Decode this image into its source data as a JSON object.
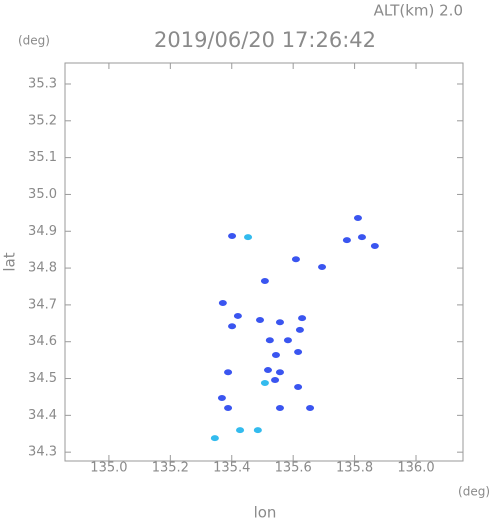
{
  "chart_data": {
    "type": "scatter",
    "title": "2019/06/20 17:26:42",
    "annotation": "ALT(km) 2.0",
    "ylabel_unit": "(deg)",
    "xlabel_unit": "(deg)",
    "xlabel": "lon",
    "ylabel": "lat",
    "xlim": [
      134.857,
      136.153
    ],
    "ylim": [
      34.276,
      35.357
    ],
    "xticks": [
      {
        "value": 135,
        "label": "135.0"
      },
      135.2,
      135.4,
      135.6,
      135.8,
      {
        "value": 136,
        "label": "136.0"
      }
    ],
    "yticks": [
      34.3,
      34.4,
      34.5,
      34.6,
      34.7,
      34.8,
      34.9,
      {
        "value": 35,
        "label": "35.0"
      },
      35.1,
      35.2,
      35.3
    ],
    "series": [
      {
        "color": "#3a55f0",
        "x": [
          135.401,
          135.775,
          135.824,
          135.811,
          135.866,
          135.609,
          135.694,
          135.508,
          135.371,
          135.401,
          135.42,
          135.492,
          135.557,
          135.629,
          135.622,
          135.583,
          135.524,
          135.544,
          135.616,
          135.518,
          135.541,
          135.557,
          135.616,
          135.388,
          135.368,
          135.557,
          135.655,
          135.388
        ],
        "values": [
          34.887,
          34.876,
          34.884,
          34.936,
          34.86,
          34.824,
          34.803,
          34.765,
          34.705,
          34.642,
          34.67,
          34.659,
          34.653,
          34.664,
          34.632,
          34.604,
          34.604,
          34.564,
          34.572,
          34.523,
          34.496,
          34.517,
          34.477,
          34.517,
          34.447,
          34.42,
          34.42,
          34.42
        ]
      },
      {
        "color": "#33bbee",
        "x": [
          135.453,
          135.508,
          135.427,
          135.485,
          135.345
        ],
        "values": [
          34.884,
          34.488,
          34.36,
          34.36,
          34.338
        ]
      }
    ]
  }
}
